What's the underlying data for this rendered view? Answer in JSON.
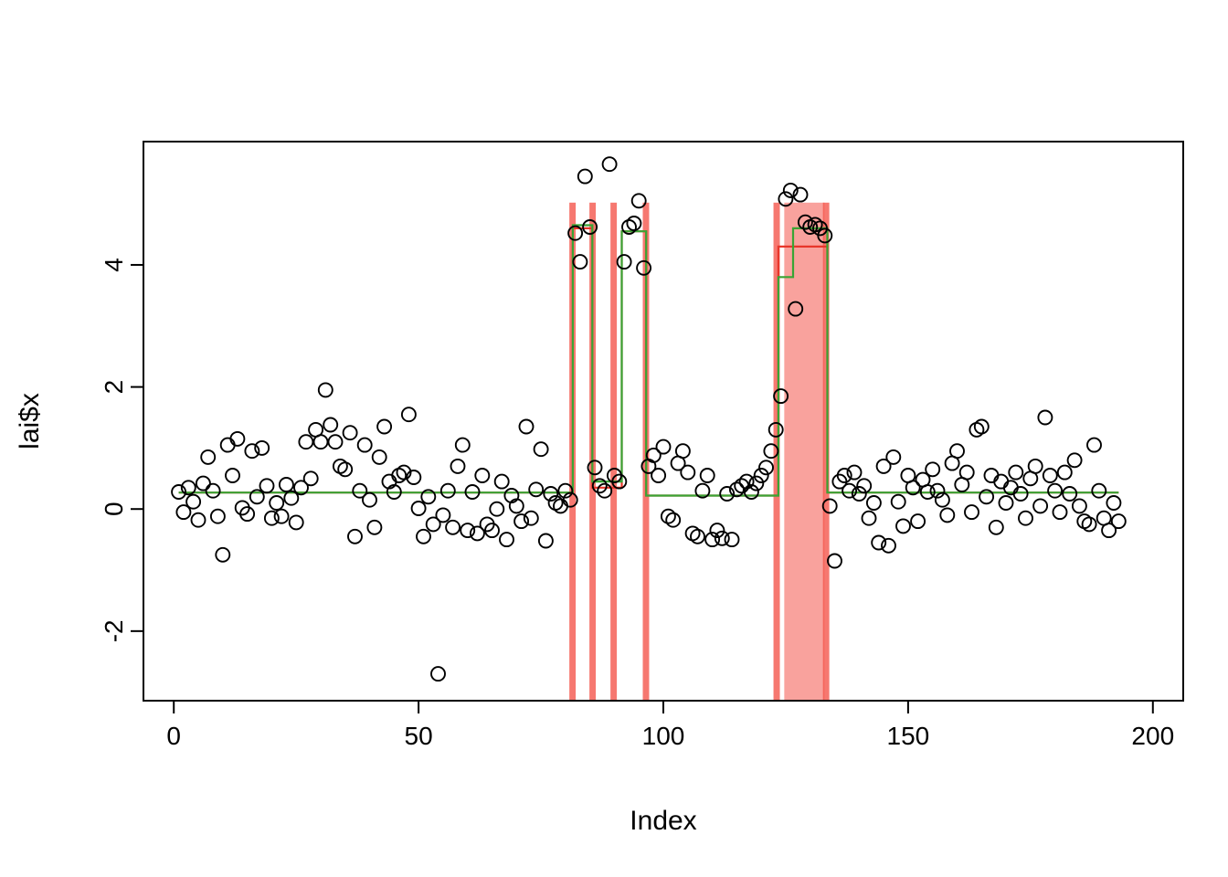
{
  "chart_data": {
    "type": "scatter",
    "title": "",
    "xlabel": "Index",
    "ylabel": "lai$x",
    "xlim": [
      -6.2,
      206.2
    ],
    "ylim": [
      -3.14,
      6.02
    ],
    "x_ticks": [
      0,
      50,
      100,
      150,
      200
    ],
    "y_ticks": [
      -2,
      0,
      2,
      4
    ],
    "grid": false,
    "legend": "none",
    "point_color": "#000000",
    "point_radius": 7.5,
    "band_color": "#f4564c",
    "band_y_range": [
      -3.14,
      5.02
    ],
    "bands": [
      {
        "x1": 80.8,
        "x2": 82.1,
        "opacity": 0.8
      },
      {
        "x1": 84.9,
        "x2": 86.2,
        "opacity": 0.8
      },
      {
        "x1": 89.2,
        "x2": 90.5,
        "opacity": 0.8
      },
      {
        "x1": 95.8,
        "x2": 97.1,
        "opacity": 0.8
      },
      {
        "x1": 122.5,
        "x2": 123.8,
        "opacity": 0.8
      },
      {
        "x1": 124.7,
        "x2": 132.9,
        "opacity": 0.55
      },
      {
        "x1": 132.6,
        "x2": 133.9,
        "opacity": 0.8
      }
    ],
    "lines": [
      {
        "name": "red-step-line",
        "color": "#e8362a",
        "width": 2.2,
        "segments": [
          [
            1,
            81.5,
            0.27
          ],
          [
            81.5,
            85.5,
            4.6
          ],
          [
            85.5,
            91.5,
            0.35
          ],
          [
            91.5,
            96.5,
            4.55
          ],
          [
            96.5,
            123.5,
            0.22
          ],
          [
            123.5,
            133.5,
            4.3
          ],
          [
            133.5,
            193,
            0.27
          ]
        ]
      },
      {
        "name": "green-step-line",
        "color": "#3aa435",
        "width": 2.2,
        "segments": [
          [
            1,
            81.5,
            0.27
          ],
          [
            81.5,
            85.5,
            4.65
          ],
          [
            85.5,
            91.5,
            0.45
          ],
          [
            91.5,
            96.5,
            4.55
          ],
          [
            96.5,
            123.5,
            0.22
          ],
          [
            123.5,
            126.5,
            3.8
          ],
          [
            126.5,
            133.5,
            4.6
          ],
          [
            133.5,
            193,
            0.27
          ]
        ]
      }
    ],
    "points": {
      "x_start": 1,
      "x_step": 1,
      "y": [
        0.28,
        -0.05,
        0.35,
        0.12,
        -0.18,
        0.42,
        0.85,
        0.3,
        -0.12,
        -0.75,
        1.05,
        0.55,
        1.15,
        0.02,
        -0.08,
        0.95,
        0.2,
        1.0,
        0.38,
        -0.15,
        0.1,
        -0.12,
        0.4,
        0.18,
        -0.22,
        0.35,
        1.1,
        0.5,
        1.3,
        1.1,
        1.95,
        1.38,
        1.1,
        0.7,
        0.65,
        1.25,
        -0.45,
        0.3,
        1.05,
        0.15,
        -0.3,
        0.85,
        1.35,
        0.45,
        0.28,
        0.55,
        0.6,
        1.55,
        0.52,
        0.01,
        -0.45,
        0.2,
        -0.25,
        -2.7,
        -0.1,
        0.3,
        -0.3,
        0.7,
        1.05,
        -0.35,
        0.28,
        -0.4,
        0.55,
        -0.25,
        -0.35,
        0.0,
        0.45,
        -0.5,
        0.22,
        0.05,
        -0.2,
        1.35,
        -0.15,
        0.32,
        0.98,
        -0.52,
        0.25,
        0.1,
        0.05,
        0.3,
        0.15,
        4.52,
        4.05,
        5.45,
        4.62,
        0.68,
        0.38,
        0.3,
        5.65,
        0.55,
        0.45,
        4.05,
        4.62,
        4.68,
        5.05,
        3.95,
        0.7,
        0.88,
        0.55,
        1.02,
        -0.12,
        -0.18,
        0.75,
        0.95,
        0.6,
        -0.4,
        -0.45,
        0.3,
        0.55,
        -0.5,
        -0.35,
        -0.48,
        0.25,
        -0.5,
        0.32,
        0.38,
        0.45,
        0.28,
        0.42,
        0.55,
        0.68,
        0.95,
        1.3,
        1.85,
        5.08,
        5.22,
        3.28,
        5.15,
        4.7,
        4.62,
        4.66,
        4.6,
        4.48,
        0.05,
        -0.85,
        0.45,
        0.55,
        0.3,
        0.6,
        0.25,
        0.38,
        -0.15,
        0.1,
        -0.55,
        0.7,
        -0.6,
        0.85,
        0.12,
        -0.28,
        0.55,
        0.35,
        -0.2,
        0.48,
        0.28,
        0.65,
        0.3,
        0.15,
        -0.1,
        0.75,
        0.95,
        0.4,
        0.6,
        -0.05,
        1.3,
        1.35,
        0.2,
        0.55,
        -0.3,
        0.45,
        0.1,
        0.35,
        0.6,
        0.25,
        -0.15,
        0.5,
        0.7,
        0.05,
        1.5,
        0.55,
        0.3,
        -0.05,
        0.6,
        0.25,
        0.8,
        0.05,
        -0.2,
        -0.25,
        1.05,
        0.3,
        -0.15,
        -0.35,
        0.1,
        -0.2
      ]
    }
  }
}
